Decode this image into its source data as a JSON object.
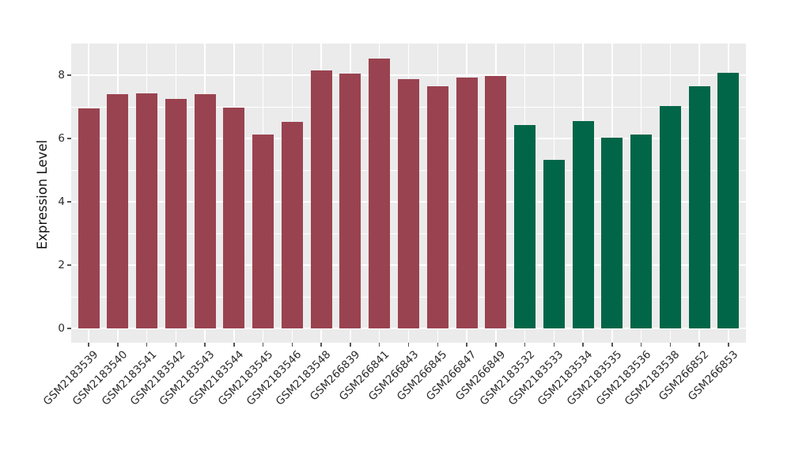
{
  "chart_data": {
    "type": "bar",
    "title": "",
    "xlabel": "",
    "ylabel": "Expression Level",
    "ylim": [
      -0.45,
      9.0
    ],
    "yticks": [
      0,
      2,
      4,
      6,
      8
    ],
    "minor_gridlines": [
      1,
      3,
      5,
      7
    ],
    "grid": "white gridlines on gray panel",
    "legend_position": "none",
    "group_colors": {
      "groupA": "#9A4350",
      "groupB": "#016648"
    },
    "bars": [
      {
        "label": "GSM2183539",
        "value": 6.95,
        "group": "groupA"
      },
      {
        "label": "GSM2183540",
        "value": 7.4,
        "group": "groupA"
      },
      {
        "label": "GSM2183541",
        "value": 7.43,
        "group": "groupA"
      },
      {
        "label": "GSM2183542",
        "value": 7.25,
        "group": "groupA"
      },
      {
        "label": "GSM2183543",
        "value": 7.4,
        "group": "groupA"
      },
      {
        "label": "GSM2183544",
        "value": 6.97,
        "group": "groupA"
      },
      {
        "label": "GSM2183545",
        "value": 6.13,
        "group": "groupA"
      },
      {
        "label": "GSM2183546",
        "value": 6.53,
        "group": "groupA"
      },
      {
        "label": "GSM2183548",
        "value": 8.15,
        "group": "groupA"
      },
      {
        "label": "GSM266839",
        "value": 8.05,
        "group": "groupA"
      },
      {
        "label": "GSM266841",
        "value": 8.52,
        "group": "groupA"
      },
      {
        "label": "GSM266843",
        "value": 7.87,
        "group": "groupA"
      },
      {
        "label": "GSM266845",
        "value": 7.65,
        "group": "groupA"
      },
      {
        "label": "GSM266847",
        "value": 7.92,
        "group": "groupA"
      },
      {
        "label": "GSM266849",
        "value": 7.98,
        "group": "groupA"
      },
      {
        "label": "GSM2183532",
        "value": 6.42,
        "group": "groupB"
      },
      {
        "label": "GSM2183533",
        "value": 5.33,
        "group": "groupB"
      },
      {
        "label": "GSM2183534",
        "value": 6.56,
        "group": "groupB"
      },
      {
        "label": "GSM2183535",
        "value": 6.02,
        "group": "groupB"
      },
      {
        "label": "GSM2183536",
        "value": 6.12,
        "group": "groupB"
      },
      {
        "label": "GSM2183538",
        "value": 7.02,
        "group": "groupB"
      },
      {
        "label": "GSM266852",
        "value": 7.64,
        "group": "groupB"
      },
      {
        "label": "GSM266853",
        "value": 8.07,
        "group": "groupB"
      }
    ]
  },
  "style": {
    "panel_bg": "#EBEBEB",
    "figure_bg": "#FFFFFF",
    "grid_color": "#FFFFFF",
    "tick_mark_color": "#555555",
    "tick_label_color": "#2b2b2b",
    "axis_title_color": "#111111"
  }
}
